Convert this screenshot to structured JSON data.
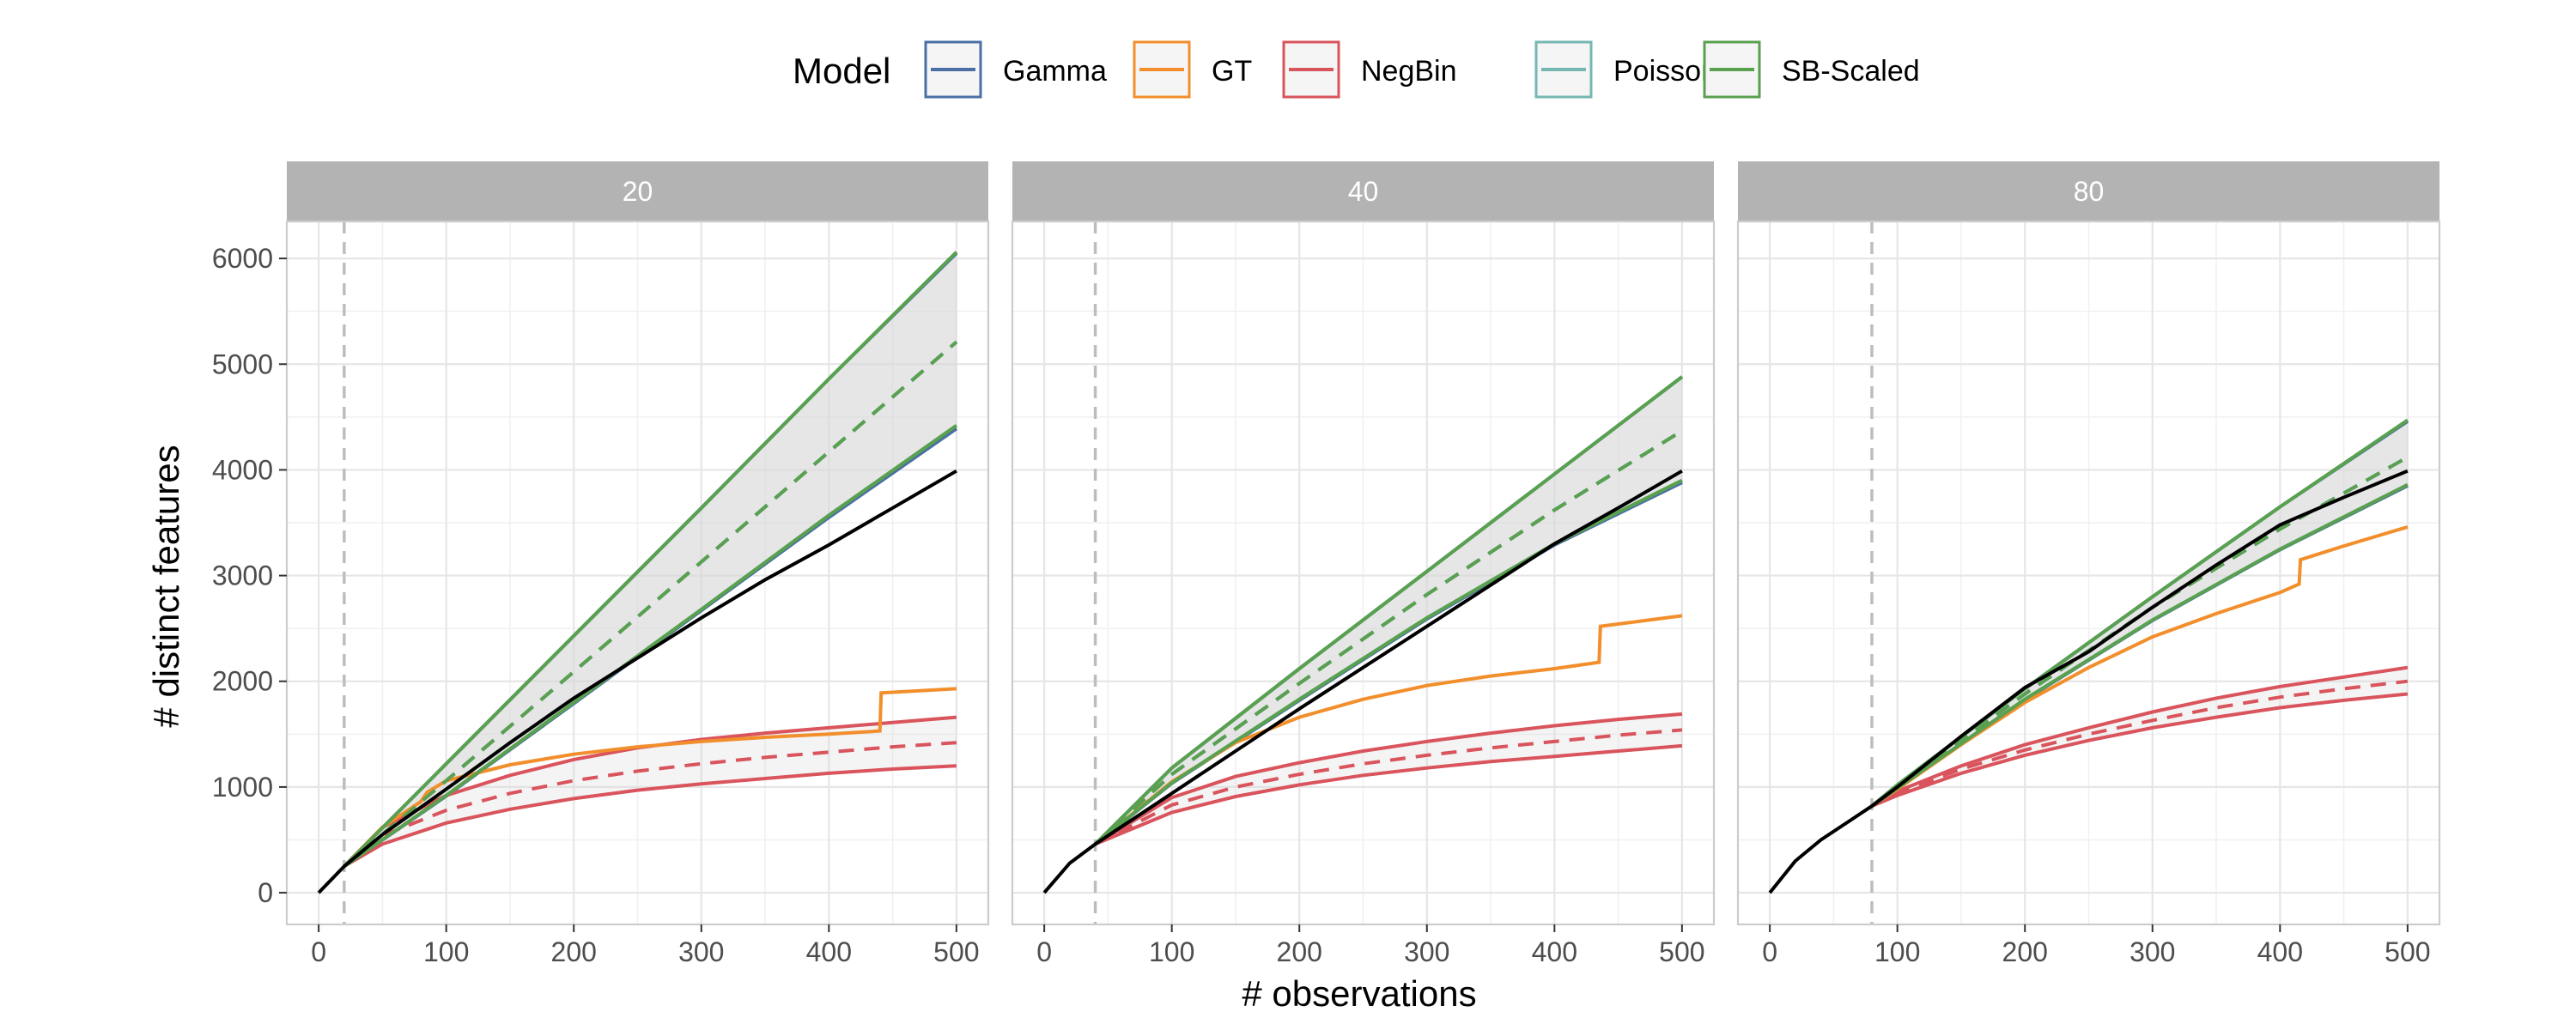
{
  "chart_data": {
    "type": "line",
    "xlabel": "# observations",
    "ylabel": "# distinct features",
    "xlim": [
      -25,
      525
    ],
    "ylim": [
      -300,
      6350
    ],
    "x_ticks": [
      0,
      100,
      200,
      300,
      400,
      500
    ],
    "y_ticks": [
      0,
      1000,
      2000,
      3000,
      4000,
      5000,
      6000
    ],
    "grid": true,
    "legend": {
      "title": "Model",
      "position": "top",
      "entries": [
        {
          "name": "Gamma",
          "color": "#4a6fa5"
        },
        {
          "name": "GT",
          "color": "#f28e2b"
        },
        {
          "name": "NegBin",
          "color": "#d9545c"
        },
        {
          "name": "Poisson",
          "color": "#76b7b2"
        },
        {
          "name": "SB-Scaled",
          "color": "#59a14f"
        }
      ]
    },
    "colors": {
      "observed": "#000000",
      "vline": "#bdbdbd",
      "ribbon": "#d9d9d9",
      "strip_background": "#b3b3b3",
      "panel_grid": "#e6e6e6"
    },
    "panels": [
      {
        "label": "20",
        "start_n": 20,
        "observed": {
          "x": [
            0,
            20,
            50,
            100,
            150,
            200,
            250,
            300,
            350,
            400,
            450,
            500
          ],
          "y": [
            0,
            250,
            550,
            980,
            1420,
            1840,
            2220,
            2600,
            2960,
            3290,
            3640,
            3990
          ]
        },
        "series": [
          {
            "name": "SB-Scaled",
            "color": "#59a14f",
            "x": [
              20,
              100,
              200,
              300,
              400,
              500
            ],
            "upper": [
              250,
              1220,
              2430,
              3640,
              4860,
              6060
            ],
            "mean": [
              250,
              1060,
              2090,
              3130,
              4170,
              5210
            ],
            "lower": [
              250,
              920,
              1800,
              2680,
              3570,
              4420
            ]
          },
          {
            "name": "Gamma",
            "color": "#4a6fa5",
            "x": [
              20,
              100,
              200,
              300,
              400,
              500
            ],
            "upper": [
              250,
              1220,
              2430,
              3640,
              4860,
              6050
            ],
            "mean": [
              250,
              1060,
              2090,
              3130,
              4170,
              5210
            ],
            "lower": [
              250,
              915,
              1790,
              2670,
              3550,
              4390
            ]
          },
          {
            "name": "Poisson",
            "color": "#76b7b2",
            "x": [
              20,
              100,
              200,
              300,
              400,
              500
            ],
            "upper": [
              250,
              1220,
              2430,
              3640,
              4860,
              6060
            ],
            "mean": [
              250,
              1060,
              2090,
              3130,
              4170,
              5210
            ],
            "lower": [
              250,
              920,
              1800,
              2680,
              3570,
              4420
            ]
          },
          {
            "name": "NegBin",
            "color": "#d9545c",
            "x": [
              20,
              50,
              100,
              150,
              200,
              250,
              300,
              350,
              400,
              450,
              500
            ],
            "upper": [
              250,
              620,
              920,
              1110,
              1260,
              1370,
              1450,
              1510,
              1560,
              1610,
              1660
            ],
            "mean": [
              250,
              540,
              780,
              940,
              1060,
              1150,
              1220,
              1280,
              1330,
              1380,
              1420
            ],
            "lower": [
              250,
              460,
              660,
              790,
              890,
              970,
              1030,
              1080,
              1130,
              1170,
              1200
            ]
          },
          {
            "name": "GT",
            "color": "#f28e2b",
            "x": [
              20,
              50,
              80,
              85,
              100,
              150,
              200,
              250,
              300,
              350,
              400,
              440,
              441,
              500
            ],
            "y": [
              250,
              620,
              860,
              950,
              1060,
              1210,
              1310,
              1380,
              1430,
              1470,
              1500,
              1530,
              1890,
              1930
            ]
          }
        ]
      },
      {
        "label": "40",
        "start_n": 40,
        "observed": {
          "x": [
            0,
            20,
            40,
            100,
            150,
            200,
            250,
            300,
            350,
            400,
            450,
            500
          ],
          "y": [
            0,
            280,
            460,
            940,
            1340,
            1740,
            2130,
            2520,
            2910,
            3300,
            3640,
            3990
          ]
        },
        "series": [
          {
            "name": "SB-Scaled",
            "color": "#59a14f",
            "x": [
              40,
              100,
              200,
              300,
              400,
              500
            ],
            "upper": [
              460,
              1180,
              2120,
              3040,
              3960,
              4880
            ],
            "mean": [
              460,
              1120,
              1980,
              2820,
              3620,
              4370
            ],
            "lower": [
              460,
              1040,
              1830,
              2600,
              3300,
              3900
            ]
          },
          {
            "name": "Gamma",
            "color": "#4a6fa5",
            "x": [
              40,
              100,
              200,
              300,
              400,
              500
            ],
            "upper": [
              460,
              1180,
              2120,
              3040,
              3960,
              4880
            ],
            "mean": [
              460,
              1120,
              1980,
              2820,
              3620,
              4370
            ],
            "lower": [
              460,
              1035,
              1820,
              2590,
              3290,
              3880
            ]
          },
          {
            "name": "Poisson",
            "color": "#76b7b2",
            "x": [
              40,
              100,
              200,
              300,
              400,
              500
            ],
            "upper": [
              460,
              1180,
              2120,
              3040,
              3960,
              4880
            ],
            "mean": [
              460,
              1120,
              1980,
              2820,
              3620,
              4370
            ],
            "lower": [
              460,
              1040,
              1830,
              2600,
              3300,
              3900
            ]
          },
          {
            "name": "NegBin",
            "color": "#d9545c",
            "x": [
              40,
              100,
              150,
              200,
              250,
              300,
              350,
              400,
              450,
              500
            ],
            "upper": [
              460,
              900,
              1100,
              1230,
              1340,
              1430,
              1510,
              1580,
              1640,
              1690
            ],
            "mean": [
              460,
              830,
              1000,
              1120,
              1220,
              1300,
              1370,
              1430,
              1490,
              1540
            ],
            "lower": [
              460,
              760,
              910,
              1020,
              1110,
              1180,
              1240,
              1290,
              1340,
              1390
            ]
          },
          {
            "name": "GT",
            "color": "#f28e2b",
            "x": [
              40,
              100,
              150,
              200,
              250,
              300,
              350,
              400,
              435,
              436,
              500
            ],
            "y": [
              460,
              1050,
              1420,
              1660,
              1830,
              1960,
              2050,
              2120,
              2180,
              2520,
              2620
            ]
          }
        ]
      },
      {
        "label": "80",
        "start_n": 80,
        "observed": {
          "x": [
            0,
            20,
            40,
            80,
            100,
            150,
            200,
            250,
            300,
            350,
            400,
            450,
            500
          ],
          "y": [
            0,
            300,
            500,
            820,
            1000,
            1480,
            1940,
            2280,
            2700,
            3100,
            3480,
            3740,
            3990
          ]
        },
        "series": [
          {
            "name": "SB-Scaled",
            "color": "#59a14f",
            "x": [
              80,
              100,
              200,
              300,
              400,
              500
            ],
            "upper": [
              820,
              1020,
              1930,
              2800,
              3650,
              4470
            ],
            "mean": [
              820,
              1000,
              1880,
              2700,
              3440,
              4120
            ],
            "lower": [
              820,
              990,
              1830,
              2580,
              3250,
              3860
            ]
          },
          {
            "name": "Gamma",
            "color": "#4a6fa5",
            "x": [
              80,
              100,
              200,
              300,
              400,
              500
            ],
            "upper": [
              820,
              1020,
              1930,
              2800,
              3650,
              4460
            ],
            "mean": [
              820,
              1000,
              1880,
              2700,
              3440,
              4120
            ],
            "lower": [
              820,
              990,
              1825,
              2575,
              3245,
              3850
            ]
          },
          {
            "name": "Poisson",
            "color": "#76b7b2",
            "x": [
              80,
              100,
              200,
              300,
              400,
              500
            ],
            "upper": [
              820,
              1020,
              1930,
              2800,
              3650,
              4470
            ],
            "mean": [
              820,
              1000,
              1880,
              2700,
              3440,
              4120
            ],
            "lower": [
              820,
              990,
              1830,
              2580,
              3250,
              3860
            ]
          },
          {
            "name": "NegBin",
            "color": "#d9545c",
            "x": [
              80,
              100,
              150,
              200,
              250,
              300,
              350,
              400,
              450,
              500
            ],
            "upper": [
              820,
              960,
              1200,
              1400,
              1560,
              1710,
              1840,
              1950,
              2040,
              2130
            ],
            "mean": [
              820,
              940,
              1170,
              1350,
              1500,
              1630,
              1750,
              1850,
              1930,
              2000
            ],
            "lower": [
              820,
              920,
              1130,
              1300,
              1440,
              1560,
              1660,
              1750,
              1820,
              1880
            ]
          },
          {
            "name": "GT",
            "color": "#f28e2b",
            "x": [
              80,
              100,
              150,
              200,
              250,
              300,
              350,
              400,
              415,
              416,
              450,
              500
            ],
            "y": [
              820,
              980,
              1400,
              1800,
              2130,
              2420,
              2640,
              2840,
              2920,
              3150,
              3280,
              3460
            ]
          }
        ]
      }
    ]
  }
}
